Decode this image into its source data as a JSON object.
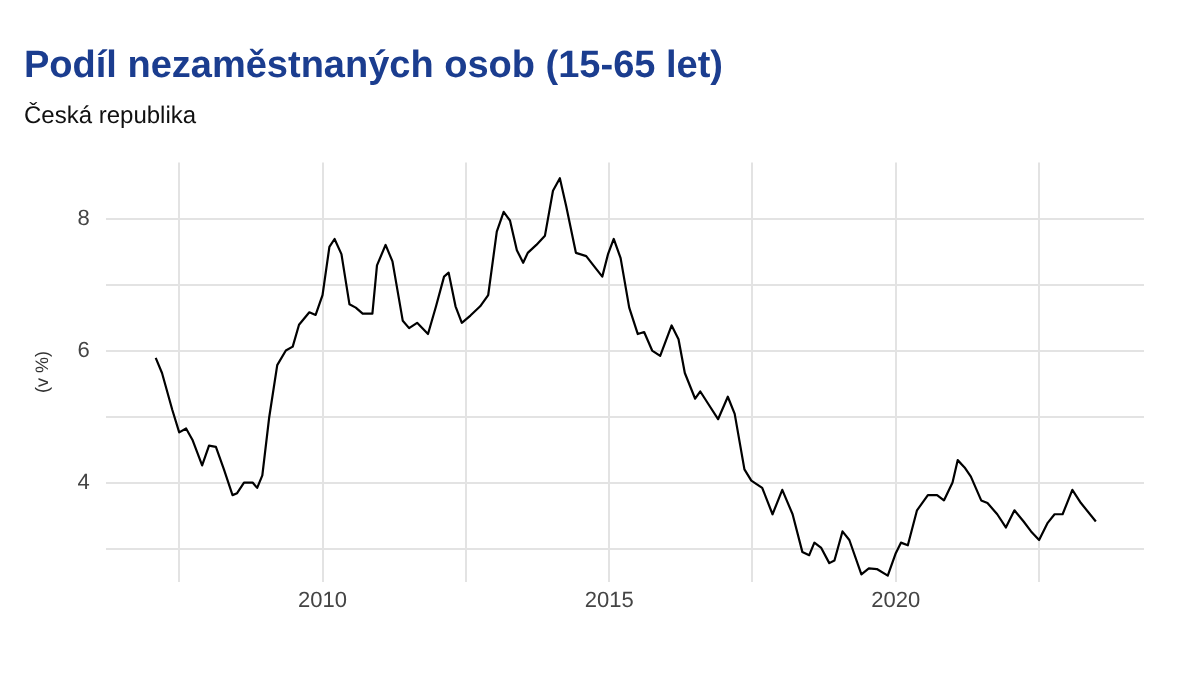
{
  "chart_data": {
    "type": "line",
    "title": "Podíl nezaměstnaných osob (15-65 let)",
    "subtitle": "Česká republika",
    "ylabel": "(v %)",
    "x": [
      2007.09,
      2007.2,
      2007.38,
      2007.5,
      2007.62,
      2007.73,
      2007.9,
      2008.02,
      2008.14,
      2008.28,
      2008.43,
      2008.51,
      2008.63,
      2008.78,
      2008.86,
      2008.95,
      2009.07,
      2009.21,
      2009.36,
      2009.48,
      2009.59,
      2009.77,
      2009.88,
      2010.0,
      2010.12,
      2010.21,
      2010.33,
      2010.47,
      2010.58,
      2010.7,
      2010.87,
      2010.95,
      2011.1,
      2011.22,
      2011.4,
      2011.51,
      2011.65,
      2011.84,
      2011.98,
      2012.12,
      2012.2,
      2012.32,
      2012.43,
      2012.58,
      2012.75,
      2012.89,
      2013.04,
      2013.16,
      2013.27,
      2013.39,
      2013.5,
      2013.58,
      2013.73,
      2013.88,
      2014.02,
      2014.14,
      2014.25,
      2014.42,
      2014.6,
      2014.77,
      2014.88,
      2014.98,
      2015.08,
      2015.2,
      2015.35,
      2015.5,
      2015.61,
      2015.75,
      2015.89,
      2016.09,
      2016.21,
      2016.32,
      2016.5,
      2016.59,
      2016.73,
      2016.9,
      2017.07,
      2017.19,
      2017.36,
      2017.48,
      2017.67,
      2017.85,
      2018.02,
      2018.2,
      2018.37,
      2018.49,
      2018.58,
      2018.7,
      2018.84,
      2018.93,
      2019.07,
      2019.19,
      2019.4,
      2019.53,
      2019.67,
      2019.86,
      2020.0,
      2020.09,
      2020.21,
      2020.37,
      2020.56,
      2020.72,
      2020.84,
      2020.99,
      2021.08,
      2021.2,
      2021.31,
      2021.49,
      2021.6,
      2021.77,
      2021.92,
      2022.07,
      2022.23,
      2022.36,
      2022.5,
      2022.65,
      2022.77,
      2022.91,
      2023.08,
      2023.23,
      2023.49
    ],
    "series": [
      {
        "color": "#000000",
        "values": [
          5.89,
          5.66,
          5.1,
          4.76,
          4.82,
          4.65,
          4.26,
          4.56,
          4.54,
          4.2,
          3.81,
          3.84,
          4.0,
          4.0,
          3.92,
          4.11,
          4.99,
          5.78,
          6.0,
          6.06,
          6.39,
          6.58,
          6.54,
          6.84,
          7.57,
          7.69,
          7.46,
          6.7,
          6.65,
          6.56,
          6.56,
          7.29,
          7.6,
          7.35,
          6.45,
          6.34,
          6.42,
          6.25,
          6.67,
          7.12,
          7.18,
          6.67,
          6.42,
          6.53,
          6.67,
          6.84,
          7.8,
          8.1,
          7.97,
          7.52,
          7.33,
          7.48,
          7.6,
          7.74,
          8.42,
          8.61,
          8.19,
          7.48,
          7.43,
          7.24,
          7.12,
          7.46,
          7.69,
          7.4,
          6.65,
          6.25,
          6.28,
          6.0,
          5.92,
          6.38,
          6.17,
          5.66,
          5.27,
          5.38,
          5.19,
          4.96,
          5.3,
          5.04,
          4.2,
          4.03,
          3.92,
          3.52,
          3.89,
          3.52,
          2.95,
          2.9,
          3.09,
          3.01,
          2.78,
          2.82,
          3.26,
          3.13,
          2.61,
          2.7,
          2.69,
          2.59,
          2.93,
          3.09,
          3.05,
          3.58,
          3.81,
          3.81,
          3.73,
          4.0,
          4.34,
          4.23,
          4.09,
          3.73,
          3.69,
          3.52,
          3.32,
          3.58,
          3.41,
          3.26,
          3.13,
          3.39,
          3.52,
          3.52,
          3.89,
          3.69,
          3.41
        ]
      }
    ],
    "xlim": [
      2006.22,
      2024.33
    ],
    "ylim": [
      2.5,
      8.85
    ],
    "xticks": [
      {
        "value": 2007.5,
        "label": null
      },
      2010,
      {
        "value": 2012.5,
        "label": null
      },
      2015,
      {
        "value": 2017.5,
        "label": null
      },
      2020,
      {
        "value": 2022.5,
        "label": null
      }
    ],
    "yticks": [
      {
        "value": 3,
        "label": null
      },
      4,
      {
        "value": 5,
        "label": null
      },
      6,
      {
        "value": 7,
        "label": null
      },
      8
    ],
    "grid": true,
    "legend": false,
    "marker": "none",
    "line_style": "solid"
  }
}
